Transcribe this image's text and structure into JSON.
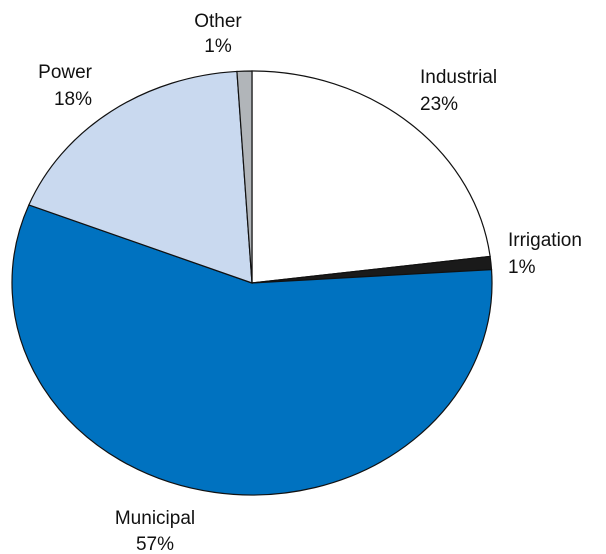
{
  "chart_data": {
    "type": "pie",
    "categories": [
      "Industrial",
      "Irrigation",
      "Municipal",
      "Power",
      "Other"
    ],
    "values": [
      23,
      1,
      57,
      18,
      1
    ],
    "value_labels": [
      "23%",
      "1%",
      "57%",
      "18%",
      "1%"
    ],
    "colors": [
      "#ffffff",
      "#1a1a1a",
      "#0072c0",
      "#c9d9ef",
      "#b1b5b9"
    ]
  }
}
